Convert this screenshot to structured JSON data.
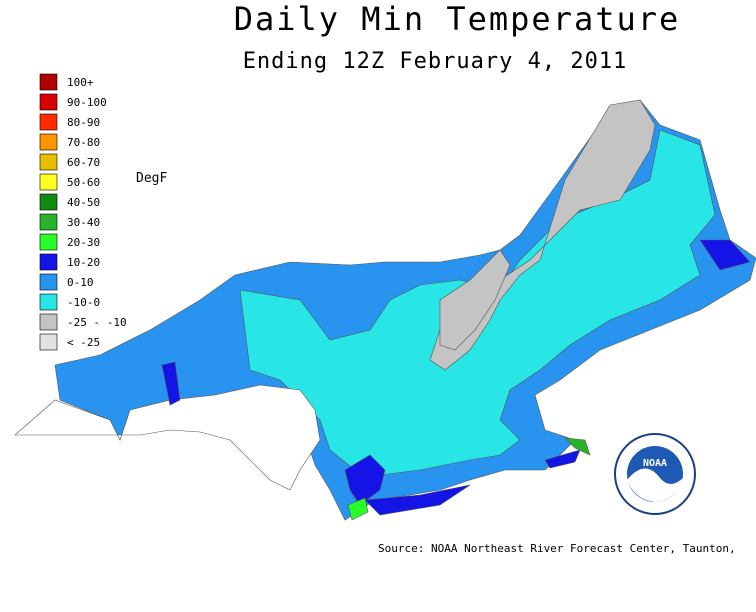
{
  "title": "Daily Min Temperature",
  "subtitle": "Ending 12Z February  4, 2011",
  "legend": {
    "unit": "DegF",
    "items": [
      {
        "label": "100+",
        "color": "#b00000"
      },
      {
        "label": "90-100",
        "color": "#d80000"
      },
      {
        "label": "80-90",
        "color": "#ff2a00"
      },
      {
        "label": "70-80",
        "color": "#ff9400"
      },
      {
        "label": "60-70",
        "color": "#e6c000"
      },
      {
        "label": "50-60",
        "color": "#ffff20"
      },
      {
        "label": "40-50",
        "color": "#108a10"
      },
      {
        "label": "30-40",
        "color": "#28b428"
      },
      {
        "label": "20-30",
        "color": "#28ff28"
      },
      {
        "label": "10-20",
        "color": "#1414e6"
      },
      {
        "label": "0-10",
        "color": "#2894f0"
      },
      {
        "label": "-10-0",
        "color": "#28e6e6"
      },
      {
        "label": "-25 - -10",
        "color": "#c4c4c4"
      },
      {
        "label": "< -25",
        "color": "#e2e2e2"
      }
    ]
  },
  "source": "Source: NOAA Northeast River Forecast Center, Taunton,",
  "logo": "NOAA"
}
